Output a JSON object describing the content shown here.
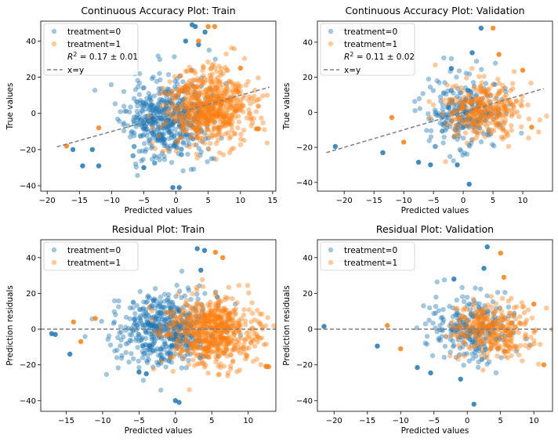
{
  "colors": {
    "treatment0": "#1f77b4",
    "treatment1": "#ff7f0e",
    "reference_line": "#7f7f7f",
    "axes": "#000000"
  },
  "chart_data": [
    {
      "type": "scatter",
      "title": "Continuous Accuracy Plot: Train",
      "xlabel": "Predicted values",
      "ylabel": "True values",
      "xlim": [
        -21,
        15.5
      ],
      "ylim": [
        -43,
        51
      ],
      "xticks": [
        -20,
        -15,
        -10,
        -5,
        0,
        5,
        10,
        15
      ],
      "yticks": [
        -40,
        -20,
        0,
        20,
        40
      ],
      "legend_position": "top-left",
      "series": [
        {
          "name": "treatment=0",
          "cx": -1.5,
          "cy": -3,
          "sx": 3.2,
          "sy": 11,
          "n": 520,
          "seed": 11,
          "points": [
            [
              -14.5,
              -29
            ],
            [
              -0.5,
              -41
            ],
            [
              0.5,
              -41
            ],
            [
              2.5,
              49
            ],
            [
              3,
              48
            ],
            [
              -5,
              -30
            ],
            [
              -13,
              -20
            ],
            [
              -16,
              -20
            ],
            [
              -12,
              -29
            ],
            [
              3.5,
              38
            ],
            [
              4.5,
              45
            ],
            [
              1.5,
              40
            ]
          ]
        },
        {
          "name": "treatment=1",
          "cx": 5,
          "cy": 3,
          "sx": 3.2,
          "sy": 10,
          "n": 620,
          "seed": 23,
          "points": [
            [
              12.5,
              -8.5
            ],
            [
              12.8,
              -8.5
            ],
            [
              5,
              48
            ],
            [
              6,
              48
            ],
            [
              3.5,
              40
            ],
            [
              -12,
              -8
            ],
            [
              -17,
              -18
            ],
            [
              10,
              25
            ]
          ]
        }
      ],
      "reference_line": {
        "name": "x=y",
        "from": [
          -18.5,
          -18.5
        ],
        "to": [
          14.5,
          14.5
        ]
      },
      "annotation": "R^2 = 0.17 ± 0.01",
      "annotation_parts": {
        "prefix": "R",
        "sup": "2",
        "suffix": " = 0.17 ± 0.01"
      },
      "grid": false
    },
    {
      "type": "scatter",
      "title": "Continuous Accuracy Plot: Validation",
      "xlabel": "Predicted values",
      "ylabel": "True values",
      "xlim": [
        -24.5,
        15
      ],
      "ylim": [
        -45,
        52
      ],
      "xticks": [
        -20,
        -15,
        -10,
        -5,
        0,
        5,
        10
      ],
      "yticks": [
        -40,
        -20,
        0,
        20,
        40
      ],
      "legend_position": "top-left",
      "series": [
        {
          "name": "treatment=0",
          "cx": 0.5,
          "cy": 0,
          "sx": 3.2,
          "sy": 10,
          "n": 260,
          "seed": 37,
          "points": [
            [
              -21.5,
              -19.5
            ],
            [
              -13.5,
              -23
            ],
            [
              1,
              -41
            ],
            [
              3,
              48
            ],
            [
              -7.5,
              -28.5
            ],
            [
              -5.5,
              -30
            ],
            [
              -1,
              -30
            ],
            [
              1.5,
              34
            ],
            [
              -2,
              25
            ]
          ]
        },
        {
          "name": "treatment=1",
          "cx": 3.5,
          "cy": 2,
          "sx": 3.2,
          "sy": 9,
          "n": 300,
          "seed": 41,
          "points": [
            [
              5,
              48
            ],
            [
              11.5,
              -8.5
            ],
            [
              6,
              33
            ],
            [
              -10,
              -17
            ],
            [
              -12,
              -3
            ],
            [
              10,
              24
            ]
          ]
        }
      ],
      "reference_line": {
        "name": "x=y",
        "from": [
          -23,
          -23
        ],
        "to": [
          13.5,
          13.5
        ]
      },
      "annotation": "R^2 = 0.11 ± 0.02",
      "annotation_parts": {
        "prefix": "R",
        "sup": "2",
        "suffix": " = 0.11 ± 0.02"
      },
      "grid": false
    },
    {
      "type": "scatter",
      "title": "Residual Plot: Train",
      "xlabel": "Predicted values",
      "ylabel": "Prediction residuals",
      "xlim": [
        -18.5,
        13.8
      ],
      "ylim": [
        -46,
        50
      ],
      "xticks": [
        -15,
        -10,
        -5,
        0,
        5,
        10
      ],
      "yticks": [
        -40,
        -20,
        0,
        20,
        40
      ],
      "legend_position": "top-left",
      "series": [
        {
          "name": "treatment=0",
          "cx": -1.5,
          "cy": 0,
          "sx": 3.2,
          "sy": 10,
          "n": 520,
          "seed": 53,
          "points": [
            [
              -14.5,
              -14
            ],
            [
              -16.5,
              -3
            ],
            [
              -17,
              -2.5
            ],
            [
              0,
              -40
            ],
            [
              0.5,
              -41
            ],
            [
              3,
              45
            ],
            [
              4,
              44
            ],
            [
              -4,
              -25
            ],
            [
              -5,
              -24
            ],
            [
              3.5,
              33
            ]
          ]
        },
        {
          "name": "treatment=1",
          "cx": 5,
          "cy": -1,
          "sx": 3.2,
          "sy": 9,
          "n": 620,
          "seed": 67,
          "points": [
            [
              12.5,
              -21
            ],
            [
              12.8,
              -21
            ],
            [
              6.5,
              40
            ],
            [
              5.5,
              43
            ],
            [
              -13,
              -7
            ],
            [
              -14,
              4
            ],
            [
              -11,
              6
            ]
          ]
        }
      ],
      "reference_line": {
        "name": "",
        "from": [
          -18.5,
          0
        ],
        "to": [
          13.8,
          0
        ]
      },
      "grid": false
    },
    {
      "type": "scatter",
      "title": "Residual Plot: Validation",
      "xlabel": "Predicted values",
      "ylabel": "Prediction residuals",
      "xlim": [
        -22.5,
        12.8
      ],
      "ylim": [
        -46,
        50
      ],
      "xticks": [
        -20,
        -15,
        -10,
        -5,
        0,
        5,
        10
      ],
      "yticks": [
        -40,
        -20,
        0,
        20,
        40
      ],
      "legend_position": "top-left",
      "series": [
        {
          "name": "treatment=0",
          "cx": 0.5,
          "cy": 0,
          "sx": 3.2,
          "sy": 9,
          "n": 260,
          "seed": 79,
          "points": [
            [
              -21.5,
              1.5
            ],
            [
              -13.5,
              -9.5
            ],
            [
              1,
              -42
            ],
            [
              3,
              46
            ],
            [
              -7.5,
              -21.5
            ],
            [
              -5.5,
              -24.5
            ],
            [
              -1,
              -28
            ],
            [
              -2,
              28
            ],
            [
              2.5,
              34
            ]
          ]
        },
        {
          "name": "treatment=1",
          "cx": 3.5,
          "cy": 0,
          "sx": 3.2,
          "sy": 8,
          "n": 300,
          "seed": 83,
          "points": [
            [
              5,
              42.5
            ],
            [
              11.5,
              -20
            ],
            [
              5.5,
              29
            ],
            [
              -10,
              -11
            ],
            [
              -12,
              2
            ],
            [
              10,
              14
            ]
          ]
        }
      ],
      "reference_line": {
        "name": "",
        "from": [
          -22.5,
          0
        ],
        "to": [
          12.8,
          0
        ]
      },
      "grid": false
    }
  ]
}
